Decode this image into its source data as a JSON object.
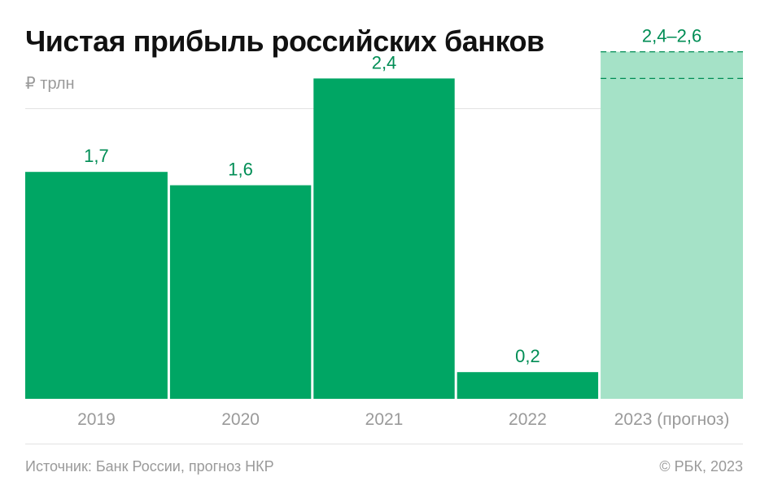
{
  "title": "Чистая прибыль российских банков",
  "unit": "₽ трлн",
  "source": "Источник: Банк России, прогноз НКР",
  "copyright": "© РБК, 2023",
  "colors": {
    "bar": "#00a664",
    "forecast_bar": "#a5e2c7",
    "label": "#008d55",
    "axis_text": "#9a9a9a"
  },
  "chart_data": {
    "type": "bar",
    "title": "Чистая прибыль российских банков",
    "ylabel": "₽ трлн",
    "ylim": [
      0,
      2.8
    ],
    "grid": false,
    "categories": [
      "2019",
      "2020",
      "2021",
      "2022",
      "2023 (прогноз)"
    ],
    "values": [
      1.7,
      1.6,
      2.4,
      0.2,
      2.6
    ],
    "value_labels": [
      "1,7",
      "1,6",
      "2,4",
      "0,2",
      "2,4–2,6"
    ],
    "forecast": {
      "category": "2023 (прогноз)",
      "range": [
        2.4,
        2.6
      ]
    }
  }
}
